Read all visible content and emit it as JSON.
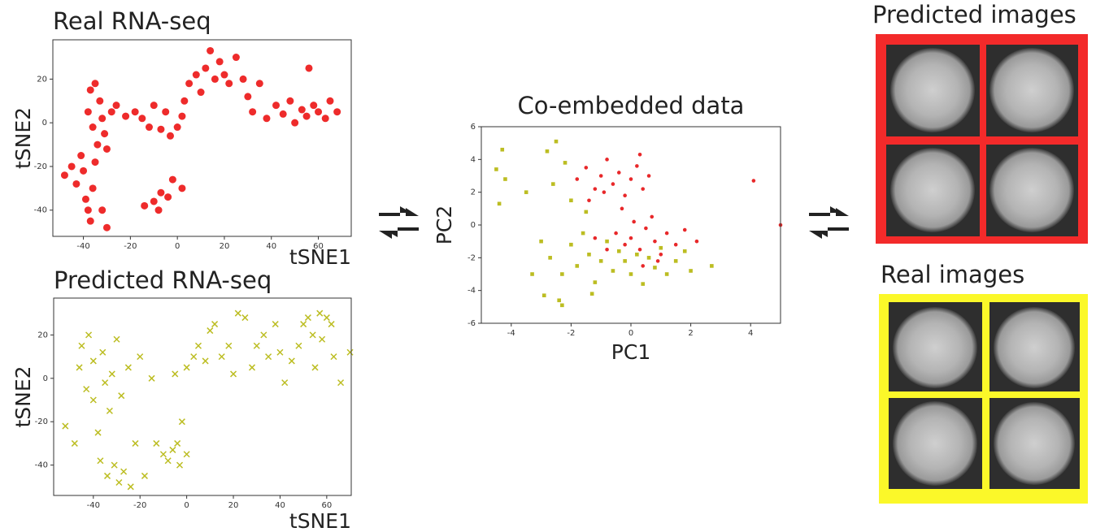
{
  "chart_data": [
    {
      "type": "scatter",
      "title": "Real RNA-seq",
      "xlabel": "tSNE1",
      "ylabel": "tSNE2",
      "color": "#ee2b2b",
      "marker": "circle",
      "xlim": [
        -53,
        74
      ],
      "ylim": [
        -52,
        38
      ],
      "xticks": [
        -40,
        -20,
        0,
        20,
        40,
        60
      ],
      "yticks": [
        -40,
        -20,
        0,
        20
      ],
      "x": [
        -48,
        -45,
        -43,
        -41,
        -40,
        -39,
        -38,
        -37,
        -36,
        -35,
        -34,
        -36,
        -38,
        -37,
        -35,
        -33,
        -32,
        -31,
        -30,
        -32,
        -28,
        -26,
        -22,
        -18,
        -15,
        -12,
        -10,
        -7,
        -5,
        -3,
        0,
        2,
        3,
        5,
        8,
        10,
        12,
        14,
        16,
        18,
        20,
        22,
        25,
        28,
        30,
        32,
        35,
        38,
        42,
        45,
        48,
        50,
        53,
        55,
        56,
        58,
        60,
        63,
        65,
        68,
        -14,
        -10,
        -7,
        -4,
        -2,
        2,
        -8,
        -30
      ],
      "values": [
        -24,
        -20,
        -28,
        -15,
        -22,
        -35,
        -40,
        -45,
        -30,
        -18,
        -10,
        -2,
        5,
        15,
        18,
        10,
        2,
        -5,
        -12,
        -40,
        5,
        8,
        3,
        5,
        2,
        -2,
        8,
        -3,
        5,
        -6,
        -2,
        3,
        10,
        18,
        22,
        14,
        25,
        33,
        20,
        28,
        22,
        18,
        30,
        20,
        12,
        5,
        18,
        2,
        8,
        4,
        10,
        0,
        6,
        3,
        25,
        8,
        5,
        2,
        10,
        5,
        -38,
        -36,
        -32,
        -34,
        -26,
        -30,
        -40,
        -48
      ]
    },
    {
      "type": "scatter",
      "title": "Predicted RNA-seq",
      "xlabel": "tSNE1",
      "ylabel": "tSNE2",
      "color": "#bcbd22",
      "marker": "x",
      "xlim": [
        -57,
        70.5
      ],
      "ylim": [
        -54,
        37
      ],
      "xticks": [
        -40,
        -20,
        0,
        20,
        40,
        60
      ],
      "yticks": [
        -40,
        -20,
        0,
        20
      ],
      "x": [
        -52,
        -48,
        -46,
        -45,
        -43,
        -42,
        -40,
        -40,
        -38,
        -37,
        -36,
        -35,
        -34,
        -33,
        -32,
        -31,
        -30,
        -29,
        -28,
        -27,
        -25,
        -24,
        -22,
        -20,
        -18,
        -15,
        -13,
        -10,
        -8,
        -6,
        -4,
        -3,
        -2,
        0,
        -5,
        0,
        3,
        5,
        8,
        10,
        12,
        15,
        18,
        20,
        22,
        25,
        28,
        30,
        33,
        35,
        38,
        40,
        42,
        45,
        48,
        50,
        52,
        54,
        55,
        57,
        58,
        60,
        62,
        63,
        66,
        70
      ],
      "values": [
        -22,
        -30,
        5,
        15,
        -5,
        20,
        -10,
        8,
        -25,
        -38,
        12,
        -2,
        -45,
        -15,
        2,
        -40,
        18,
        -48,
        -8,
        -43,
        5,
        -50,
        -30,
        10,
        -45,
        0,
        -30,
        -35,
        -38,
        -33,
        -30,
        -40,
        -20,
        -35,
        2,
        5,
        10,
        15,
        8,
        22,
        25,
        10,
        15,
        2,
        30,
        28,
        5,
        15,
        20,
        10,
        25,
        12,
        -2,
        8,
        15,
        25,
        28,
        20,
        5,
        30,
        18,
        28,
        25,
        10,
        -2,
        12
      ]
    },
    {
      "type": "scatter",
      "title": "Co-embedded data",
      "xlabel": "PC1",
      "ylabel": "PC2",
      "xlim": [
        -5,
        5
      ],
      "ylim": [
        -6,
        6
      ],
      "xticks": [
        -4,
        -2,
        0,
        2,
        4
      ],
      "yticks": [
        -6,
        -4,
        -2,
        0,
        2,
        4,
        6
      ],
      "series": [
        {
          "color": "#e8282a",
          "marker": "circle",
          "x": [
            -1.8,
            -1.5,
            -1.2,
            -1,
            -0.8,
            -0.6,
            -0.4,
            -0.2,
            0,
            0.2,
            0.4,
            0.6,
            -1.4,
            -0.9,
            0.3,
            -0.5,
            -0.2,
            0,
            0.3,
            0.5,
            0.8,
            1,
            1.2,
            1.5,
            0.7,
            0.1,
            -0.3,
            1.8,
            -0.8,
            0.4,
            2.2,
            4.1,
            5,
            -1.2,
            0.9
          ],
          "values": [
            2.8,
            3.5,
            2.2,
            3,
            4,
            2.5,
            3.2,
            1.8,
            2.8,
            3.6,
            2.2,
            3,
            1.5,
            2,
            4.3,
            -0.5,
            -1.2,
            -0.8,
            -1.5,
            -0.2,
            -1,
            -1.8,
            -0.5,
            -1.2,
            0.5,
            0.2,
            1,
            -0.3,
            -1.5,
            -2.5,
            -1,
            2.7,
            0,
            -0.8,
            -2.2
          ]
        },
        {
          "color": "#bcbd22",
          "marker": "square",
          "x": [
            -4.3,
            -4.5,
            -4.2,
            -4.4,
            -3.5,
            -2.8,
            -2.5,
            -2.2,
            -2.6,
            -2,
            -3,
            -2.7,
            -2.3,
            -2,
            -1.8,
            -1.6,
            -1.4,
            -1.2,
            -1,
            -0.8,
            -0.6,
            -0.4,
            -0.2,
            0,
            0.2,
            0.4,
            0.6,
            0.8,
            1,
            1.2,
            1.5,
            1.8,
            2,
            2.7,
            -2.9,
            -2.4,
            -1.3,
            -2.3,
            -3.3,
            -1.5
          ],
          "values": [
            4.6,
            3.4,
            2.8,
            1.3,
            2,
            4.5,
            5.1,
            3.8,
            2.5,
            1.5,
            -1,
            -2,
            -3,
            -1.2,
            -2.5,
            -0.5,
            -1.8,
            -3.5,
            -2.2,
            -1,
            -2.8,
            -1.6,
            -2.2,
            -3,
            -1.8,
            -3.6,
            -2,
            -2.6,
            -1.4,
            -3,
            -2.2,
            -1.6,
            -2.8,
            -2.5,
            -4.3,
            -4.6,
            -4.2,
            -4.9,
            -3,
            0.8
          ]
        }
      ]
    }
  ],
  "image_panels": {
    "predicted": {
      "title": "Predicted images"
    },
    "real": {
      "title": "Real images"
    }
  }
}
